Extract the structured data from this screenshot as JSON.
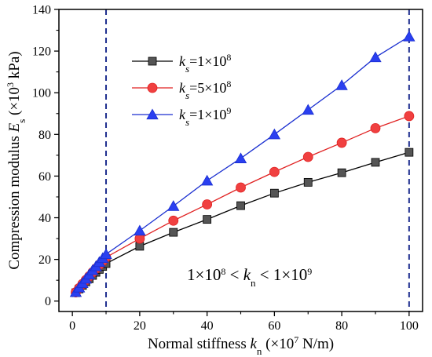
{
  "chart_data": {
    "type": "line",
    "xlim": [
      -4,
      104
    ],
    "ylim": [
      -5,
      140
    ],
    "x_ticks": [
      0,
      20,
      40,
      60,
      80,
      100
    ],
    "y_ticks": [
      0,
      20,
      40,
      60,
      80,
      100,
      120,
      140
    ],
    "minor_x_step": 10,
    "minor_y_step": 10,
    "xlabel": {
      "prefix": "Normal stiffness ",
      "var": "k",
      "sub": "n",
      "unit_pre": " (×10",
      "unit_sup": "7",
      "unit_post": " N/m)"
    },
    "ylabel": {
      "prefix": "Compression modulus ",
      "var": "E",
      "sub": "s",
      "unit_pre": " (×10",
      "unit_sup": "3",
      "unit_post": " kPa)"
    },
    "vertical_lines": [
      10,
      100
    ],
    "vertical_line_color": "#1f2f8f",
    "annotation": {
      "left": "1×10",
      "left_sup": "8",
      "mid": " < ",
      "var": "k",
      "sub": "n",
      "mid2": " < 1×10",
      "right_sup": "9"
    },
    "legend_position": "top-left",
    "x": [
      1,
      2,
      3,
      4,
      5,
      6,
      7,
      8,
      9,
      10,
      20,
      30,
      40,
      50,
      60,
      70,
      80,
      90,
      100
    ],
    "series": [
      {
        "name": {
          "var": "k",
          "sub": "s",
          "value": "=1×10",
          "sup": "8"
        },
        "color": "#000000",
        "marker_fill": "#555555",
        "marker": "square",
        "values": [
          4.0,
          5.8,
          7.5,
          9.2,
          10.7,
          12.3,
          13.8,
          15.2,
          16.6,
          18.0,
          26.3,
          33.0,
          39.2,
          45.8,
          51.8,
          57.0,
          61.6,
          66.6,
          71.4
        ]
      },
      {
        "name": {
          "var": "k",
          "sub": "s",
          "value": "=5×10",
          "sup": "8"
        },
        "color": "#e02020",
        "marker_fill": "#f04040",
        "marker": "circle",
        "values": [
          4.2,
          6.2,
          8.2,
          10.1,
          11.9,
          13.8,
          15.6,
          17.4,
          19.2,
          21.0,
          30.0,
          38.6,
          46.4,
          54.5,
          62.0,
          69.2,
          76.0,
          83.0,
          88.8
        ]
      },
      {
        "name": {
          "var": "k",
          "sub": "s",
          "value": "=1×10",
          "sup": "9"
        },
        "color": "#1a2fd0",
        "marker_fill": "#2a3ff0",
        "marker": "triangle",
        "values": [
          4.3,
          6.5,
          8.6,
          10.7,
          12.7,
          14.8,
          16.7,
          18.7,
          20.6,
          22.5,
          33.8,
          45.6,
          57.8,
          68.5,
          80.0,
          91.8,
          103.6,
          117.0,
          127.0
        ]
      }
    ]
  }
}
